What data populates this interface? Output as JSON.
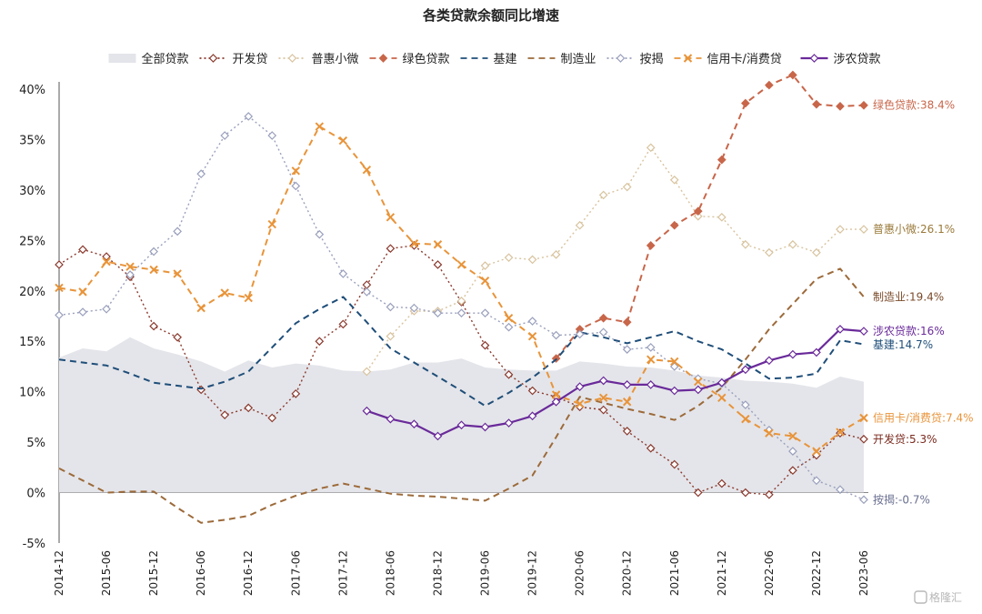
{
  "chart_data": {
    "type": "line",
    "title": "各类贷款余额同比增速",
    "ylim": [
      -5,
      40
    ],
    "yticks": [
      "40%",
      "35%",
      "30%",
      "25%",
      "20%",
      "15%",
      "10%",
      "5%",
      "0%",
      "-5%"
    ],
    "ytick_values": [
      40,
      35,
      30,
      25,
      20,
      15,
      10,
      5,
      0,
      -5
    ],
    "xtick_labels": [
      "2014-12",
      "2015-06",
      "2015-12",
      "2016-06",
      "2016-12",
      "2017-06",
      "2017-12",
      "2018-06",
      "2018-12",
      "2019-06",
      "2019-12",
      "2020-06",
      "2020-12",
      "2021-06",
      "2021-12",
      "2022-06",
      "2022-12",
      "2023-06"
    ],
    "x_periods": [
      "2014-12",
      "2015-03",
      "2015-06",
      "2015-09",
      "2015-12",
      "2016-03",
      "2016-06",
      "2016-09",
      "2016-12",
      "2017-03",
      "2017-06",
      "2017-09",
      "2017-12",
      "2018-03",
      "2018-06",
      "2018-09",
      "2018-12",
      "2019-03",
      "2019-06",
      "2019-09",
      "2019-12",
      "2020-03",
      "2020-06",
      "2020-09",
      "2020-12",
      "2021-03",
      "2021-06",
      "2021-09",
      "2021-12",
      "2022-03",
      "2022-06",
      "2022-09",
      "2022-12",
      "2023-03",
      "2023-06"
    ],
    "legend_position": "top",
    "series": [
      {
        "name": "全部贷款",
        "style": "area",
        "color": "#e4e5ea",
        "values": [
          13.4,
          14.3,
          14.0,
          15.4,
          14.3,
          13.7,
          13.0,
          12.0,
          13.1,
          12.4,
          12.8,
          12.6,
          12.1,
          12.0,
          12.2,
          12.9,
          12.9,
          13.3,
          12.4,
          12.2,
          12.1,
          12.1,
          13.0,
          12.8,
          12.5,
          12.4,
          12.1,
          11.6,
          11.4,
          11.1,
          11.0,
          10.8,
          10.4,
          11.5,
          11.0
        ]
      },
      {
        "name": "开发贷",
        "style": "dotted-diamond",
        "color": "#8a3a2e",
        "values": [
          22.6,
          24.1,
          23.4,
          21.4,
          16.5,
          15.4,
          10.2,
          7.7,
          8.4,
          7.4,
          9.8,
          15.0,
          16.7,
          20.6,
          24.2,
          24.5,
          22.6,
          18.9,
          14.6,
          11.7,
          10.1,
          9.5,
          8.5,
          8.2,
          6.1,
          4.4,
          2.8,
          0.0,
          0.9,
          0.0,
          -0.2,
          2.2,
          3.7,
          5.9,
          5.3
        ]
      },
      {
        "name": "普惠小微",
        "style": "dotted-diamond",
        "color": "#d8c39e",
        "values": [
          null,
          null,
          null,
          null,
          null,
          null,
          null,
          null,
          null,
          null,
          null,
          null,
          null,
          12.0,
          15.5,
          18.0,
          18.0,
          19.0,
          22.5,
          23.3,
          23.1,
          23.6,
          26.5,
          29.5,
          30.3,
          34.2,
          31.0,
          27.4,
          27.3,
          24.6,
          23.8,
          24.6,
          23.8,
          26.1,
          26.1
        ]
      },
      {
        "name": "绿色贷款",
        "style": "dashed-diamond",
        "color": "#c8664a",
        "values": [
          null,
          null,
          null,
          null,
          null,
          null,
          null,
          null,
          null,
          null,
          null,
          null,
          null,
          null,
          null,
          null,
          null,
          null,
          null,
          null,
          null,
          13.3,
          16.2,
          17.3,
          16.9,
          24.5,
          26.5,
          27.9,
          33.0,
          38.6,
          40.4,
          41.4,
          38.5,
          38.3,
          38.4
        ]
      },
      {
        "name": "基建",
        "style": "dashed",
        "color": "#1f4e79",
        "values": [
          13.2,
          12.9,
          12.6,
          11.8,
          10.9,
          10.6,
          10.3,
          11.0,
          12.0,
          14.4,
          16.8,
          18.2,
          19.4,
          16.9,
          14.3,
          12.9,
          11.5,
          10.1,
          8.6,
          9.9,
          11.4,
          13.2,
          15.9,
          15.4,
          14.8,
          15.4,
          16.0,
          15.0,
          14.2,
          12.8,
          11.3,
          11.4,
          11.8,
          15.1,
          14.7
        ]
      },
      {
        "name": "制造业",
        "style": "dashed",
        "color": "#9c6a3a",
        "values": [
          2.4,
          1.2,
          0.0,
          0.1,
          0.1,
          -1.5,
          -3.0,
          -2.7,
          -2.3,
          -1.2,
          -0.3,
          0.4,
          0.9,
          0.4,
          -0.1,
          -0.3,
          -0.4,
          -0.6,
          -0.8,
          0.4,
          1.7,
          5.5,
          9.5,
          8.9,
          8.3,
          7.8,
          7.2,
          8.6,
          10.4,
          13.2,
          16.2,
          18.7,
          21.2,
          22.2,
          19.4
        ]
      },
      {
        "name": "按揭",
        "style": "dotted-diamond",
        "color": "#9aa0bc",
        "values": [
          17.6,
          17.9,
          18.2,
          21.6,
          23.9,
          25.9,
          31.6,
          35.4,
          37.3,
          35.4,
          30.4,
          25.6,
          21.7,
          19.9,
          18.4,
          18.3,
          17.8,
          17.8,
          17.8,
          16.4,
          17.0,
          15.6,
          15.7,
          15.9,
          14.2,
          14.4,
          12.5,
          11.3,
          10.8,
          8.7,
          6.2,
          4.1,
          1.2,
          0.3,
          -0.7
        ]
      },
      {
        "name": "信用卡/消费贷",
        "style": "dashed-x",
        "color": "#e8943a",
        "values": [
          20.3,
          19.9,
          22.9,
          22.4,
          22.1,
          21.7,
          18.3,
          19.8,
          19.3,
          26.6,
          31.9,
          36.3,
          34.9,
          32.0,
          27.3,
          24.7,
          24.6,
          22.6,
          21.0,
          17.3,
          15.5,
          9.7,
          8.8,
          9.4,
          9.0,
          13.2,
          13.0,
          11.0,
          9.4,
          7.3,
          5.9,
          5.6,
          4.1,
          6.0,
          7.4
        ]
      },
      {
        "name": "涉农贷款",
        "style": "solid-diamond",
        "color": "#6a2a9a",
        "values": [
          null,
          null,
          null,
          null,
          null,
          null,
          null,
          null,
          null,
          null,
          null,
          null,
          null,
          8.1,
          7.3,
          6.8,
          5.6,
          6.7,
          6.5,
          6.9,
          7.6,
          9.0,
          10.5,
          11.1,
          10.7,
          10.7,
          10.1,
          10.2,
          10.9,
          12.2,
          13.1,
          13.7,
          13.9,
          16.2,
          16.0
        ]
      }
    ],
    "end_labels": [
      {
        "text": "绿色贷款:38.4%",
        "series": "绿色贷款",
        "color": "#c8664a"
      },
      {
        "text": "普惠小微:26.1%",
        "series": "普惠小微",
        "color": "#9a7a3a"
      },
      {
        "text": "制造业:19.4%",
        "series": "制造业",
        "color": "#7a4a2a"
      },
      {
        "text": "涉农贷款:16%",
        "series": "涉农贷款",
        "color": "#6a2a9a"
      },
      {
        "text": "基建:14.7%",
        "series": "基建",
        "color": "#1f4e79"
      },
      {
        "text": "信用卡/消费贷:7.4%",
        "series": "信用卡/消费贷",
        "color": "#e8943a"
      },
      {
        "text": "开发贷:5.3%",
        "series": "开发贷",
        "color": "#7a2a1e"
      },
      {
        "text": "按揭:-0.7%",
        "series": "按揭",
        "color": "#6a7090"
      }
    ]
  },
  "watermark": "格隆汇"
}
